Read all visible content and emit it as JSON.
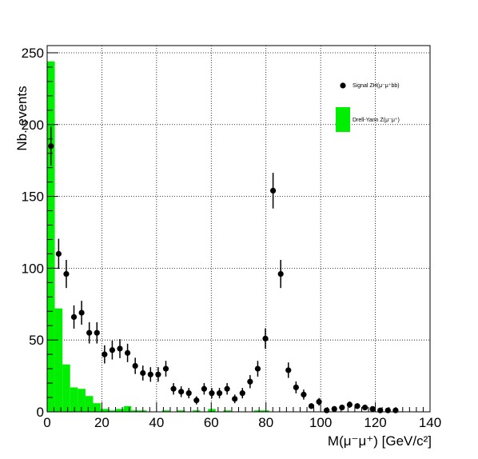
{
  "chart_data": {
    "type": "bar",
    "title": "",
    "xlabel": "M(μ⁻μ⁺) [GeV/c²]",
    "ylabel": "Nb. events",
    "xlim": [
      0,
      140
    ],
    "ylim": [
      0,
      255
    ],
    "grid": true,
    "x_ticks": [
      "0",
      "20",
      "40",
      "60",
      "80",
      "100",
      "120",
      "140"
    ],
    "y_ticks": [
      "0",
      "50",
      "100",
      "150",
      "200",
      "250"
    ],
    "legend_position": "top-right",
    "series": [
      {
        "name": "Drell-Yann Z(μ⁻μ⁺)",
        "kind": "histogram",
        "color": "#00ee00",
        "bin_width": 2.8,
        "bin_low_edges": [
          0,
          2.8,
          5.6,
          8.4,
          11.2,
          14,
          16.8,
          19.6,
          22.4,
          25.2,
          28,
          30.8,
          33.6,
          36.4,
          39.2,
          42,
          44.8,
          47.6,
          50.4,
          53.2,
          56,
          58.8,
          61.6,
          64.4,
          67.2,
          70,
          72.8,
          75.6,
          78.4,
          81.2
        ],
        "values": [
          244,
          72,
          33,
          17,
          16,
          11,
          6,
          2,
          1,
          2,
          4,
          1,
          1,
          0,
          0,
          1,
          0,
          1,
          0,
          1,
          0,
          2,
          0,
          1,
          0,
          0,
          0,
          1,
          1,
          0
        ]
      },
      {
        "name": "Signal ZH(μ⁻μ⁺bb)",
        "kind": "points_with_errors",
        "color": "#000000",
        "x": [
          1.4,
          4.2,
          7.0,
          9.8,
          12.6,
          15.4,
          18.2,
          21.0,
          23.8,
          26.6,
          29.4,
          32.2,
          35.0,
          37.8,
          40.6,
          43.4,
          46.2,
          49.0,
          51.8,
          54.6,
          57.4,
          60.2,
          63.0,
          65.8,
          68.6,
          71.4,
          74.2,
          77.0,
          79.8,
          82.6,
          85.4,
          88.2,
          91.0,
          93.8,
          96.6,
          99.4,
          102.2,
          105.0,
          107.8,
          110.6,
          113.4,
          116.2,
          119.0,
          121.8,
          124.6,
          127.4,
          130.2,
          133.0,
          135.8,
          138.6
        ],
        "values": [
          185,
          110,
          96,
          66,
          69,
          55,
          55,
          40,
          43,
          44,
          41,
          32,
          27,
          26,
          26,
          30,
          16,
          14,
          13,
          8,
          16,
          13,
          13,
          16,
          9,
          13,
          21,
          30,
          51,
          154,
          96,
          29,
          17,
          12,
          4,
          7,
          1,
          2,
          3,
          5,
          4,
          3,
          2,
          1,
          1,
          1,
          0,
          0,
          0,
          0
        ]
      }
    ],
    "x_offset_note": ""
  }
}
